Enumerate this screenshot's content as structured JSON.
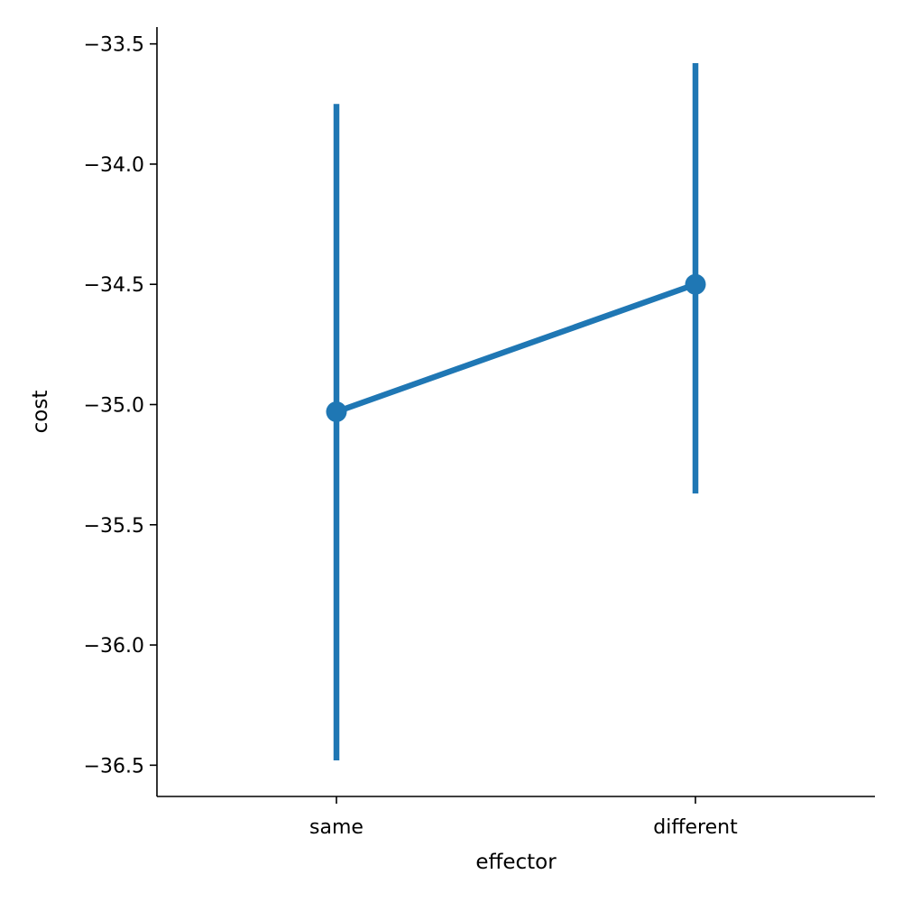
{
  "chart_data": {
    "type": "line",
    "xlabel": "effector",
    "ylabel": "cost",
    "categories": [
      "same",
      "different"
    ],
    "series": [
      {
        "values": [
          -35.03,
          -34.5
        ],
        "ci_low": [
          -36.48,
          -35.37
        ],
        "ci_high": [
          -33.75,
          -33.58
        ],
        "color": "#1f77b4"
      }
    ],
    "ylim": [
      -36.63,
      -33.43
    ],
    "yticks": [
      -36.5,
      -36.0,
      -35.5,
      -35.0,
      -34.5,
      -34.0,
      -33.5
    ],
    "ytick_labels": [
      "−36.5",
      "−36.0",
      "−35.5",
      "−35.0",
      "−34.5",
      "−34.0",
      "−33.5"
    ],
    "grid": false,
    "legend": "none"
  }
}
